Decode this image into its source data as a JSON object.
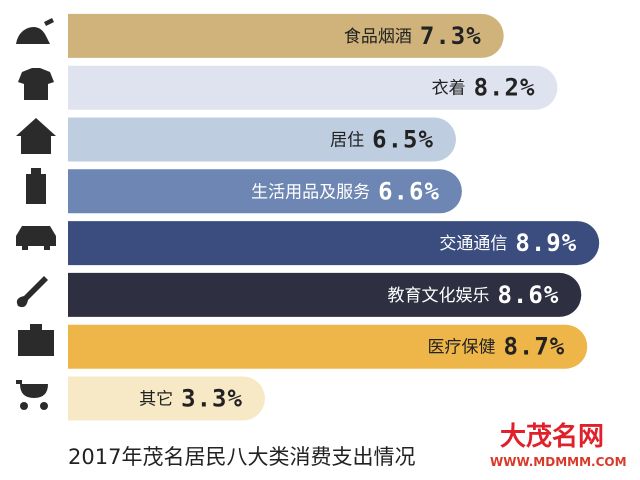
{
  "chart_data": {
    "type": "bar",
    "orientation": "horizontal",
    "title": "2017年茂名居民八大类消费支出情况",
    "categories": [
      "食品烟酒",
      "衣着",
      "居住",
      "生活用品及服务",
      "交通通信",
      "教育文化娱乐",
      "医疗保健",
      "其它"
    ],
    "values": [
      7.3,
      8.2,
      6.5,
      6.6,
      8.9,
      8.6,
      8.7,
      3.3
    ],
    "value_labels": [
      "7.3%",
      "8.2%",
      "6.5%",
      "6.6%",
      "8.9%",
      "8.6%",
      "8.7%",
      "3.3%"
    ],
    "colors": [
      "#cfb37b",
      "#dfe2ef",
      "#bfcde0",
      "#6e86b3",
      "#3a4d7e",
      "#2e3042",
      "#eeb548",
      "#f7e9c6"
    ],
    "label_colors": [
      "#222222",
      "#222222",
      "#222222",
      "#ffffff",
      "#ffffff",
      "#ffffff",
      "#222222",
      "#222222"
    ],
    "xlim": [
      0,
      9.5
    ]
  },
  "watermark": {
    "name": "大茂名网",
    "url": "WWW.MDMMM.COM"
  }
}
